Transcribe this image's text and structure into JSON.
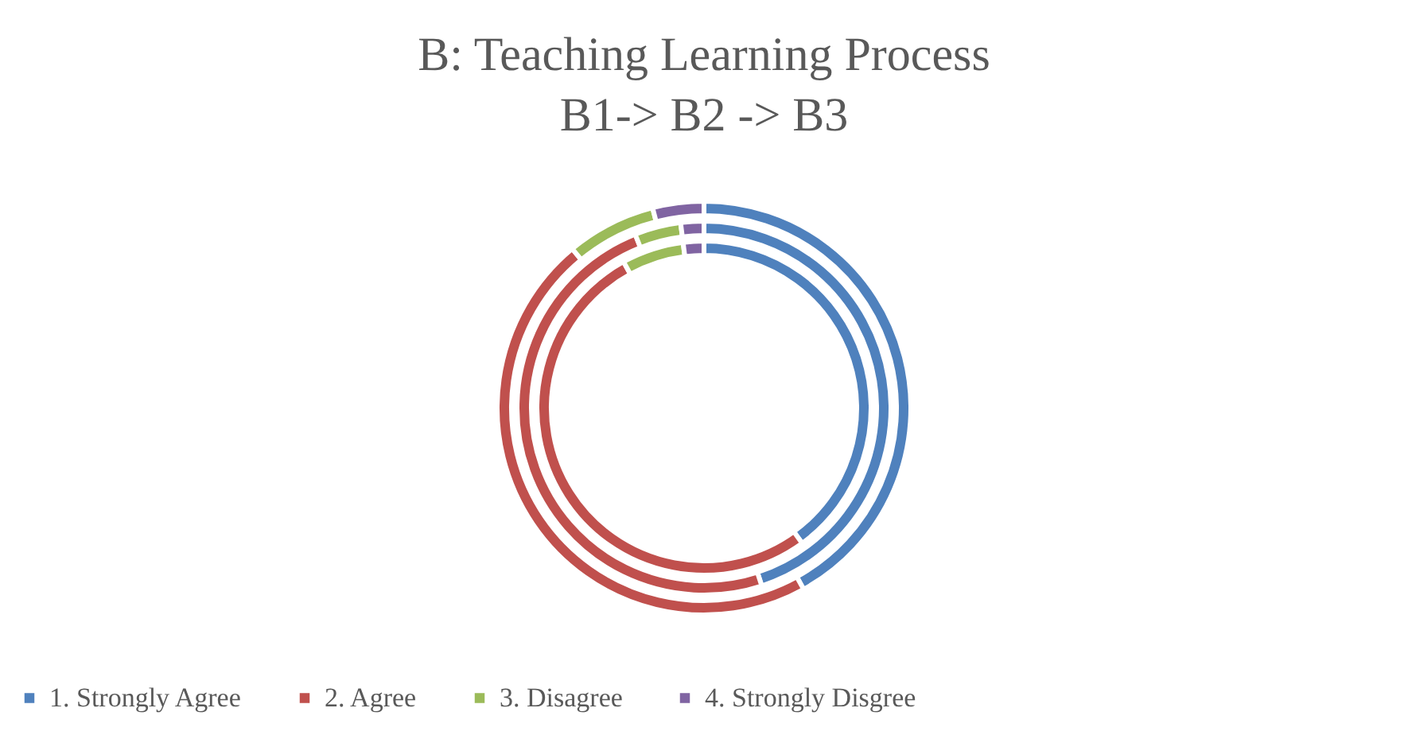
{
  "chart_data": {
    "type": "donut",
    "title": [
      "B: Teaching Learning Process",
      "B1-> B2 -> B3"
    ],
    "categories": [
      "1. Strongly Agree",
      "2. Agree",
      "3. Disagree",
      "4. Strongly Disgree"
    ],
    "colors": [
      "#4f81bd",
      "#c0504d",
      "#9bbb59",
      "#8064a2"
    ],
    "series": [
      {
        "values": [
          40,
          52,
          6,
          2
        ]
      },
      {
        "values": [
          45,
          49,
          4,
          2
        ]
      },
      {
        "values": [
          42,
          47,
          7,
          4
        ]
      }
    ],
    "legend": "bottom"
  }
}
